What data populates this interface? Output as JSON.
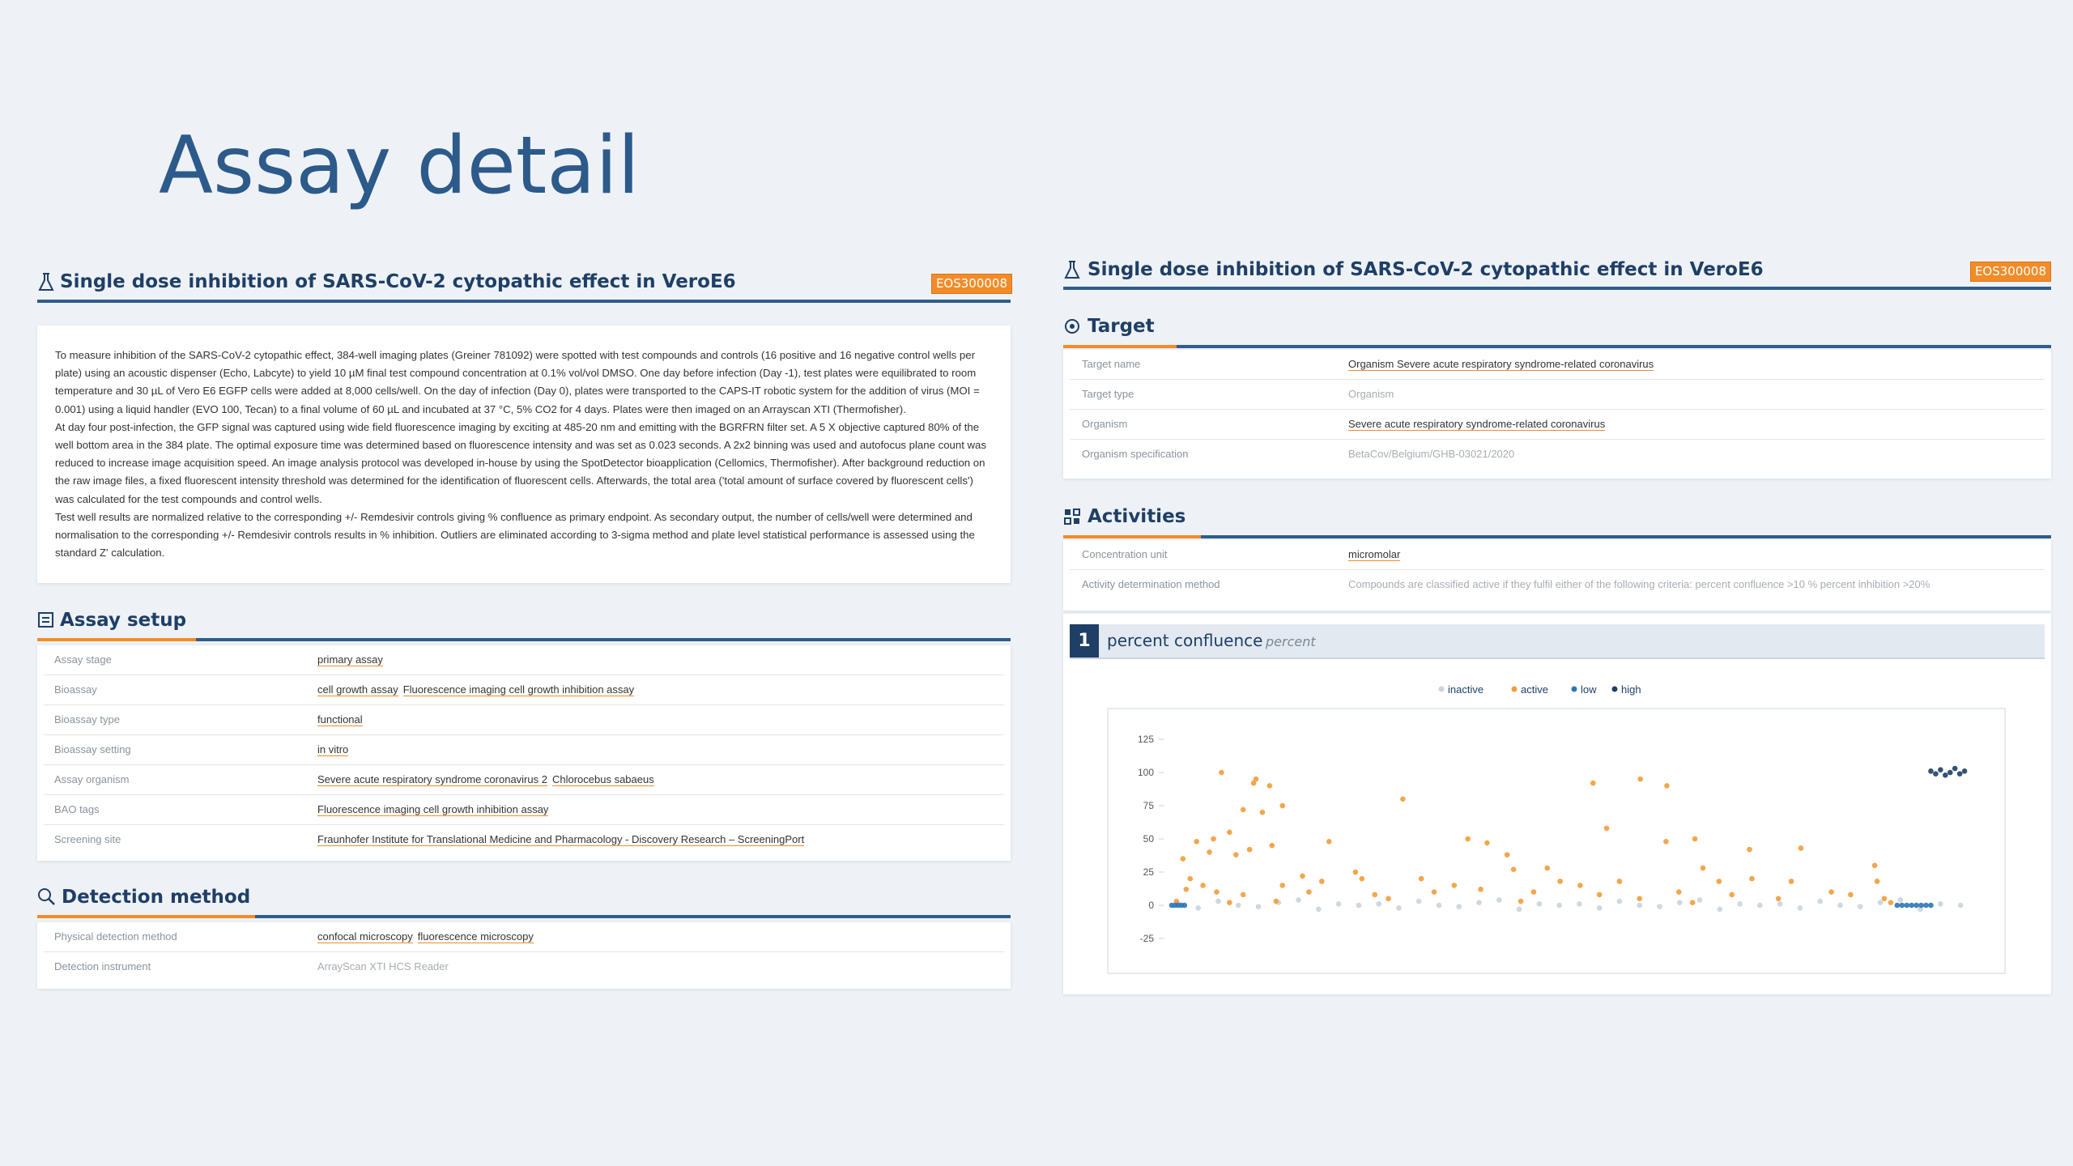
{
  "title": "Assay detail",
  "left_panel": {
    "title": "Single dose inhibition of SARS-CoV-2 cytopathic effect in VeroE6",
    "badge": "EOS300008",
    "description": [
      "To measure inhibition of the SARS-CoV-2 cytopathic effect, 384-well imaging plates (Greiner 781092) were spotted with test compounds and controls (16 positive and 16 negative control wells per plate) using an acoustic dispenser (Echo, Labcyte) to yield 10 µM final test compound concentration at 0.1% vol/vol DMSO. One day before infection (Day -1), test plates were equilibrated to room temperature and 30 µL of Vero E6 EGFP cells were added at 8,000 cells/well. On the day of infection (Day 0), plates were transported to the CAPS-IT robotic system for the addition of virus (MOI = 0.001) using a liquid handler (EVO 100, Tecan) to a final volume of 60 µL and incubated at 37 °C, 5% CO2 for 4 days. Plates were then imaged on an Arrayscan XTI (Thermofisher).",
      "At day four post-infection, the GFP signal was captured using wide field fluorescence imaging by exciting at 485-20 nm and emitting with the BGRFRN filter set. A 5 X objective captured 80% of the well bottom area in the 384 plate. The optimal exposure time was determined based on fluorescence intensity and was set as 0.023 seconds. A 2x2 binning was used and autofocus plane count was reduced to increase image acquisition speed. An image analysis protocol was developed in-house by using the SpotDetector bioapplication (Cellomics, Thermofisher). After background reduction on the raw image files, a fixed fluorescent intensity threshold was determined for the identification of fluorescent cells. Afterwards, the total area ('total amount of surface covered by fluorescent cells') was calculated for the test compounds and control wells.",
      "Test well results are normalized relative to the corresponding +/- Remdesivir controls giving % confluence as primary endpoint. As secondary output, the number of cells/well were determined and normalisation to the corresponding +/- Remdesivir controls results in % inhibition. Outliers are eliminated according to 3-sigma method and plate level statistical performance is assessed using the standard Z' calculation."
    ],
    "assay_setup": {
      "heading": "Assay setup",
      "rows": [
        {
          "label": "Assay stage",
          "links": [
            "primary assay"
          ]
        },
        {
          "label": "Bioassay",
          "links": [
            "cell growth assay",
            "Fluorescence imaging cell growth inhibition assay"
          ]
        },
        {
          "label": "Bioassay type",
          "links": [
            "functional"
          ]
        },
        {
          "label": "Bioassay setting",
          "links": [
            "in vitro"
          ]
        },
        {
          "label": "Assay organism",
          "links": [
            "Severe acute respiratory syndrome coronavirus 2",
            "Chlorocebus sabaeus"
          ]
        },
        {
          "label": "BAO tags",
          "links": [
            "Fluorescence imaging cell growth inhibition assay"
          ]
        },
        {
          "label": "Screening site",
          "links": [
            "Fraunhofer Institute for Translational Medicine and Pharmacology - Discovery Research – ScreeningPort"
          ]
        }
      ]
    },
    "detection_method": {
      "heading": "Detection method",
      "rows": [
        {
          "label": "Physical detection method",
          "links": [
            "confocal microscopy",
            "fluorescence microscopy"
          ]
        },
        {
          "label": "Detection instrument",
          "text": "ArrayScan XTI HCS Reader"
        }
      ]
    }
  },
  "right_panel": {
    "title": "Single dose inhibition of SARS-CoV-2 cytopathic effect in VeroE6",
    "badge": "EOS300008",
    "target": {
      "heading": "Target",
      "rows": [
        {
          "label": "Target name",
          "links": [
            "Organism Severe acute respiratory syndrome-related coronavirus"
          ]
        },
        {
          "label": "Target type",
          "text": "Organism"
        },
        {
          "label": "Organism",
          "links": [
            "Severe acute respiratory syndrome-related coronavirus"
          ]
        },
        {
          "label": "Organism specification",
          "text": "BetaCov/Belgium/GHB-03021/2020"
        }
      ]
    },
    "activities": {
      "heading": "Activities",
      "rows": [
        {
          "label": "Concentration unit",
          "links": [
            "micromolar"
          ]
        },
        {
          "label": "Activity determination method",
          "text": "Compounds are classified active if they fulfil either of the following criteria: percent confluence >10 % percent inhibition >20%"
        }
      ]
    },
    "result": {
      "number": 1,
      "name": "percent confluence",
      "unit": "percent"
    }
  },
  "chart_data": {
    "type": "scatter",
    "xlim": [
      0,
      1000
    ],
    "ylim": [
      -25,
      125
    ],
    "yticks": [
      -25,
      0,
      25,
      50,
      75,
      100,
      125
    ],
    "grid": false,
    "legend": "top",
    "series": [
      {
        "name": "inactive",
        "color": "#c9d4de",
        "x": [
          10,
          35,
          60,
          85,
          110,
          135,
          160,
          185,
          210,
          235,
          260,
          285,
          310,
          335,
          360,
          385,
          410,
          435,
          460,
          485,
          510,
          535,
          560,
          585,
          610,
          635,
          660,
          685,
          710,
          735,
          760,
          785,
          810,
          835,
          860,
          885,
          910,
          935,
          960,
          985
        ],
        "values": [
          1,
          -2,
          3,
          0,
          -1,
          2,
          4,
          -3,
          1,
          0,
          1,
          -2,
          3,
          0,
          -1,
          2,
          4,
          -3,
          1,
          0,
          1,
          -2,
          3,
          0,
          -1,
          2,
          4,
          -3,
          1,
          0,
          1,
          -2,
          3,
          0,
          -1,
          2,
          4,
          -3,
          1,
          0
        ]
      },
      {
        "name": "active",
        "color": "#f39c38",
        "x": [
          64,
          107,
          104,
          124,
          91,
          115,
          140,
          74,
          54,
          33,
          49,
          16,
          82,
          99,
          127,
          198,
          290,
          371,
          395,
          527,
          586,
          619,
          544,
          618,
          654,
          722,
          786,
          420,
          428,
          313,
          354,
          231,
          239,
          165,
          189,
          470,
          486,
          511,
          560,
          664,
          684,
          725,
          774,
          824,
          878,
          881,
          25,
          41,
          20,
          58,
          91,
          140,
          173,
          255,
          329,
          387,
          453,
          535,
          585,
          634,
          700,
          758,
          848,
          890,
          8,
          74,
          132,
          272,
          437,
          651,
          898
        ],
        "values": [
          100,
          95,
          92,
          90,
          72,
          70,
          75,
          55,
          50,
          48,
          40,
          35,
          38,
          42,
          45,
          48,
          80,
          50,
          47,
          92,
          95,
          90,
          58,
          48,
          50,
          42,
          43,
          38,
          27,
          20,
          15,
          25,
          20,
          22,
          18,
          28,
          18,
          15,
          18,
          28,
          18,
          20,
          18,
          10,
          30,
          18,
          20,
          15,
          12,
          10,
          8,
          15,
          10,
          8,
          10,
          12,
          10,
          8,
          5,
          10,
          8,
          5,
          8,
          5,
          3,
          2,
          3,
          5,
          3,
          2,
          2
        ]
      },
      {
        "name": "low",
        "color": "#2e75b6",
        "x": [
          2,
          6,
          10,
          14,
          18,
          906,
          912,
          918,
          924,
          930,
          936,
          942,
          948
        ],
        "values": [
          0,
          0,
          0,
          0,
          0,
          0,
          0,
          0,
          0,
          0,
          0,
          0,
          0
        ]
      },
      {
        "name": "high",
        "color": "#1f3f66",
        "x": [
          948,
          954,
          960,
          966,
          972,
          978,
          984,
          990
        ],
        "values": [
          101,
          99,
          102,
          98,
          100,
          103,
          99,
          101
        ]
      }
    ]
  }
}
